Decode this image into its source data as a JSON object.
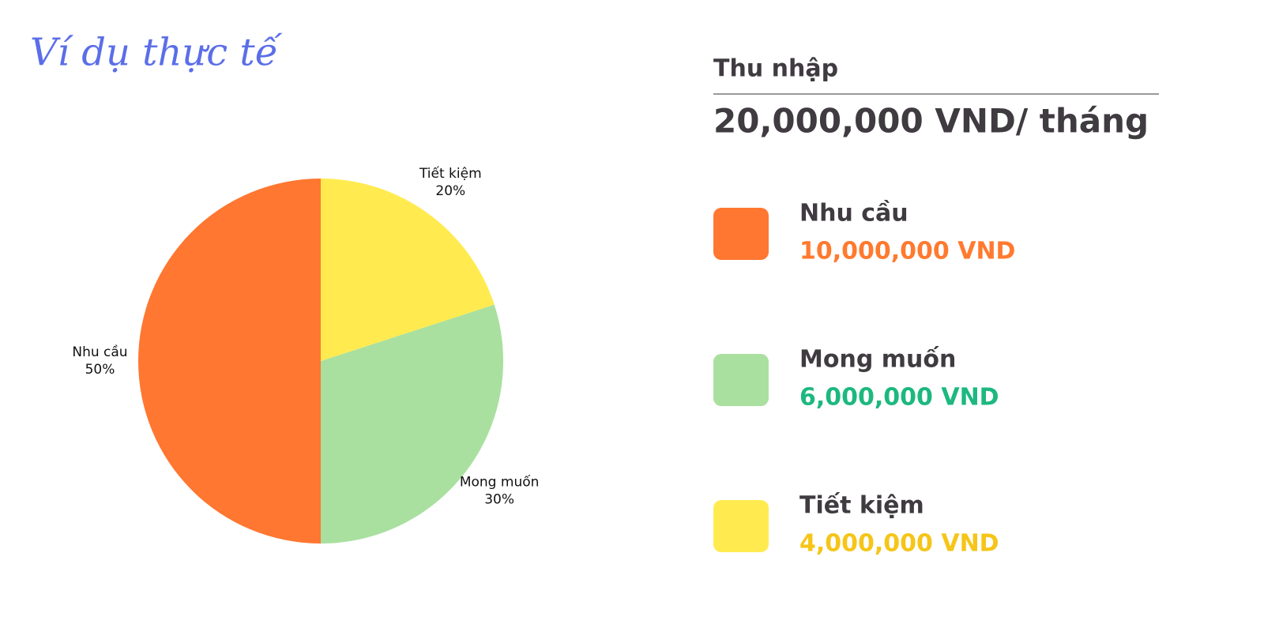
{
  "chart_data": {
    "type": "pie",
    "title": "Ví dụ thực tế",
    "categories": [
      "Nhu cầu",
      "Mong muốn",
      "Tiết kiệm"
    ],
    "values": [
      50,
      30,
      20
    ],
    "value_labels": [
      "50%",
      "30%",
      "20%"
    ],
    "colors": [
      "#ff7730",
      "#a9e09f",
      "#ffeb50"
    ]
  },
  "panel": {
    "heading": "Thu nhập",
    "total": "20,000,000 VND/ tháng",
    "amounts": [
      "10,000,000 VND",
      "6,000,000 VND",
      "4,000,000 VND"
    ],
    "amount_colors": [
      "#ff7a2f",
      "#1db87f",
      "#f5c518"
    ]
  }
}
